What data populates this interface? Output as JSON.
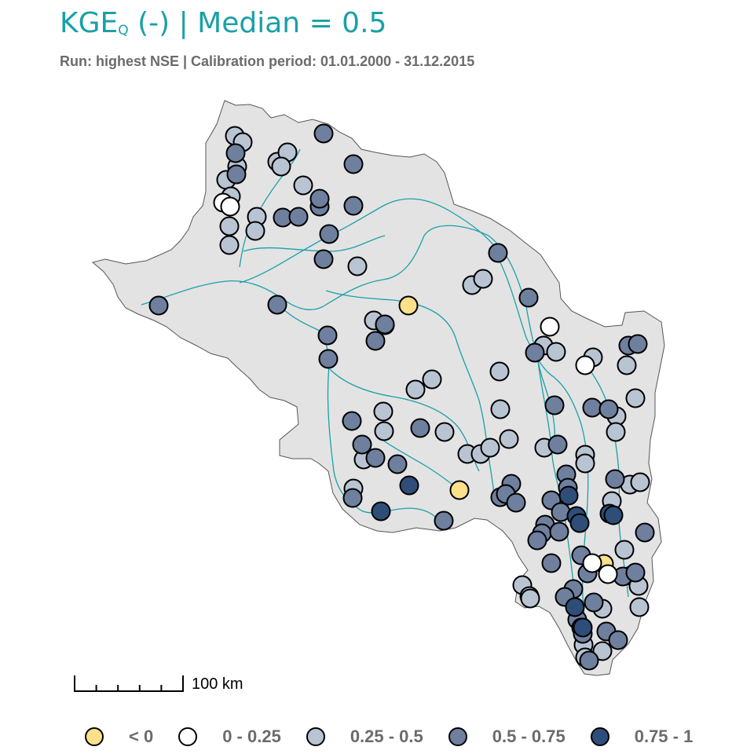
{
  "title": {
    "prefix": "KGE",
    "subscript": "Q",
    "suffix": " (-) | Median = 0.5",
    "color": "#1aa0a8"
  },
  "subtitle": "Run: highest NSE | Calibration period: 01.01.2000 - 31.12.2015",
  "scale_bar": {
    "label": "100 km"
  },
  "legend": [
    {
      "label": "< 0",
      "class": "c0",
      "color": "#fde08a"
    },
    {
      "label": "0 - 0.25",
      "class": "c1",
      "color": "#ffffff"
    },
    {
      "label": "0.25 - 0.5",
      "class": "c2",
      "color": "#b9c4d3"
    },
    {
      "label": "0.5 - 0.75",
      "class": "c3",
      "color": "#6f7f9e"
    },
    {
      "label": "0.75 - 1",
      "class": "c4",
      "color": "#2e4e79"
    }
  ],
  "map": {
    "basin_fill": "#e3e3e3",
    "river_color": "#1aa0a8",
    "gauges": {
      "c0": [
        [
          520,
          389
        ],
        [
          585,
          624
        ],
        [
          769,
          718
        ]
      ],
      "c1": [
        [
          284,
          258
        ],
        [
          293,
          263
        ],
        [
          700,
          416
        ],
        [
          745,
          465
        ],
        [
          754,
          717
        ],
        [
          774,
          731
        ]
      ],
      "c2": [
        [
          299,
          173
        ],
        [
          309,
          181
        ],
        [
          302,
          212
        ],
        [
          288,
          229
        ],
        [
          294,
          250
        ],
        [
          292,
          288
        ],
        [
          292,
          312
        ],
        [
          327,
          276
        ],
        [
          325,
          294
        ],
        [
          353,
          206
        ],
        [
          366,
          194
        ],
        [
          358,
          212
        ],
        [
          386,
          236
        ],
        [
          455,
          339
        ],
        [
          476,
          408
        ],
        [
          490,
          414
        ],
        [
          529,
          496
        ],
        [
          550,
          483
        ],
        [
          488,
          524
        ],
        [
          489,
          549
        ],
        [
          566,
          550
        ],
        [
          463,
          585
        ],
        [
          450,
          622
        ],
        [
          601,
          363
        ],
        [
          615,
          355
        ],
        [
          636,
          473
        ],
        [
          637,
          521
        ],
        [
          648,
          559
        ],
        [
          595,
          578
        ],
        [
          612,
          578
        ],
        [
          624,
          570
        ],
        [
          692,
          440
        ],
        [
          708,
          448
        ],
        [
          755,
          455
        ],
        [
          798,
          465
        ],
        [
          809,
          507
        ],
        [
          785,
          530
        ],
        [
          784,
          550
        ],
        [
          693,
          570
        ],
        [
          745,
          579
        ],
        [
          745,
          590
        ],
        [
          802,
          617
        ],
        [
          815,
          614
        ],
        [
          779,
          638
        ],
        [
          795,
          700
        ],
        [
          803,
          733
        ],
        [
          813,
          746
        ],
        [
          665,
          745
        ],
        [
          674,
          759
        ],
        [
          675,
          762
        ],
        [
          767,
          775
        ],
        [
          814,
          773
        ],
        [
          743,
          821
        ],
        [
          767,
          829
        ],
        [
          745,
          837
        ]
      ],
      "c3": [
        [
          300,
          195
        ],
        [
          301,
          222
        ],
        [
          360,
          277
        ],
        [
          380,
          276
        ],
        [
          407,
          263
        ],
        [
          407,
          253
        ],
        [
          412,
          170
        ],
        [
          450,
          209
        ],
        [
          450,
          262
        ],
        [
          419,
          298
        ],
        [
          412,
          330
        ],
        [
          202,
          389
        ],
        [
          353,
          388
        ],
        [
          417,
          427
        ],
        [
          418,
          457
        ],
        [
          490,
          413
        ],
        [
          478,
          434
        ],
        [
          535,
          545
        ],
        [
          448,
          536
        ],
        [
          461,
          566
        ],
        [
          478,
          583
        ],
        [
          506,
          591
        ],
        [
          449,
          634
        ],
        [
          565,
          663
        ],
        [
          634,
          322
        ],
        [
          673,
          379
        ],
        [
          681,
          449
        ],
        [
          706,
          516
        ],
        [
          754,
          519
        ],
        [
          775,
          521
        ],
        [
          710,
          566
        ],
        [
          721,
          604
        ],
        [
          651,
          616
        ],
        [
          637,
          633
        ],
        [
          644,
          629
        ],
        [
          657,
          640
        ],
        [
          723,
          621
        ],
        [
          702,
          637
        ],
        [
          714,
          652
        ],
        [
          694,
          668
        ],
        [
          690,
          679
        ],
        [
          684,
          688
        ],
        [
          712,
          677
        ],
        [
          740,
          707
        ],
        [
          702,
          717
        ],
        [
          783,
          610
        ],
        [
          800,
          440
        ],
        [
          812,
          438
        ],
        [
          821,
          678
        ],
        [
          748,
          730
        ],
        [
          793,
          734
        ],
        [
          809,
          729
        ],
        [
          730,
          750
        ],
        [
          719,
          760
        ],
        [
          756,
          767
        ],
        [
          735,
          789
        ],
        [
          740,
          799
        ],
        [
          742,
          807
        ],
        [
          772,
          804
        ],
        [
          787,
          815
        ],
        [
          750,
          841
        ]
      ],
      "c4": [
        [
          485,
          651
        ],
        [
          521,
          618
        ],
        [
          724,
          631
        ],
        [
          734,
          657
        ],
        [
          738,
          666
        ],
        [
          776,
          654
        ],
        [
          781,
          656
        ],
        [
          732,
          773
        ],
        [
          742,
          799
        ]
      ]
    },
    "rivers": [
      "M180,388 C220,376 250,362 288,358 C320,355 345,370 362,382 C382,396 400,398 415,388 C438,374 460,360 488,356 C515,352 528,330 540,300 C552,282 588,284 622,300 C648,320 660,355 670,390 C675,420 682,450 690,480 C700,510 710,540 705,570",
      "M362,395 C378,408 392,414 405,420 C418,432 420,460 418,480 C416,520 420,560 425,600 C430,628 445,640 460,650 C480,660 510,640 540,650 C555,655 560,665 560,668",
      "M305,340 C308,320 312,300 320,285 C332,265 340,250 355,230 C368,214 378,200 382,190",
      "M305,360 C340,350 380,320 420,300 C450,285 470,272 488,262 C520,245 550,255 575,270 C600,285 620,300 635,320",
      "M310,320 C340,310 380,320 420,320 C450,320 470,305 490,300",
      "M415,370 C440,378 470,380 500,382 C540,386 570,400 580,430 C590,462 600,480 610,510 C618,540 620,570 625,600 C628,620 630,630 628,640",
      "M635,330 C650,360 660,400 670,430 C680,450 690,470 705,480 C720,492 730,510 740,540 C748,570 750,600 748,640 C746,680 740,720 742,760 C744,790 748,820 750,845",
      "M742,460 C760,480 775,510 780,540 C785,570 790,600 788,640 C786,680 796,720 800,760",
      "M420,470 C440,490 470,500 500,505 C530,510 560,520 580,540 C595,556 600,580 610,600",
      "M480,555 C500,570 520,580 540,592 C560,604 575,616 585,624",
      "M685,460 C690,500 700,540 702,570 C704,600 712,620 718,650 C722,680 728,720 732,760"
    ]
  }
}
